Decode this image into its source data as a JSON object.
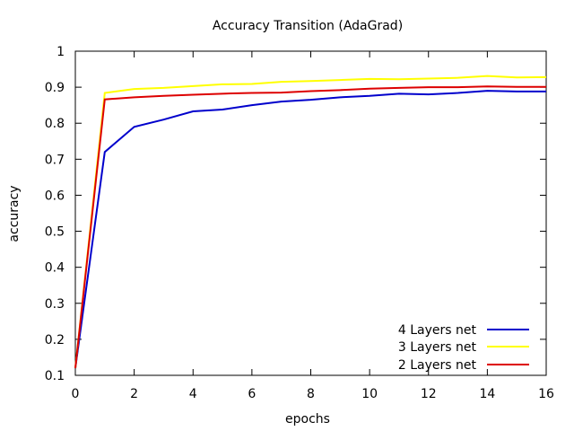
{
  "chart_data": {
    "type": "line",
    "title": "Accuracy Transition (AdaGrad)",
    "xlabel": "epochs",
    "ylabel": "accuracy",
    "xlim": [
      0,
      16
    ],
    "ylim": [
      0.1,
      1.0
    ],
    "xticks": [
      "0",
      "2",
      "4",
      "6",
      "8",
      "10",
      "12",
      "14",
      "16"
    ],
    "yticks": [
      "0.1",
      "0.2",
      "0.3",
      "0.4",
      "0.5",
      "0.6",
      "0.7",
      "0.8",
      "0.9",
      "1"
    ],
    "grid": false,
    "legend_position": "bottom-right",
    "x": [
      0,
      1,
      2,
      3,
      4,
      5,
      6,
      7,
      8,
      9,
      10,
      11,
      12,
      13,
      14,
      15,
      16
    ],
    "series": [
      {
        "name": "4 Layers net",
        "color": "#0000cc",
        "values": [
          0.12,
          0.72,
          0.79,
          0.81,
          0.833,
          0.838,
          0.85,
          0.86,
          0.865,
          0.872,
          0.876,
          0.882,
          0.88,
          0.884,
          0.89,
          0.888,
          0.888
        ]
      },
      {
        "name": "3 Layers net",
        "color": "#ffff00",
        "values": [
          0.12,
          0.884,
          0.895,
          0.898,
          0.903,
          0.908,
          0.909,
          0.915,
          0.917,
          0.92,
          0.923,
          0.922,
          0.924,
          0.926,
          0.931,
          0.927,
          0.928
        ]
      },
      {
        "name": "2 Layers net",
        "color": "#dd0000",
        "values": [
          0.12,
          0.866,
          0.872,
          0.876,
          0.879,
          0.882,
          0.884,
          0.885,
          0.889,
          0.892,
          0.896,
          0.898,
          0.9,
          0.9,
          0.902,
          0.901,
          0.901
        ]
      }
    ]
  }
}
